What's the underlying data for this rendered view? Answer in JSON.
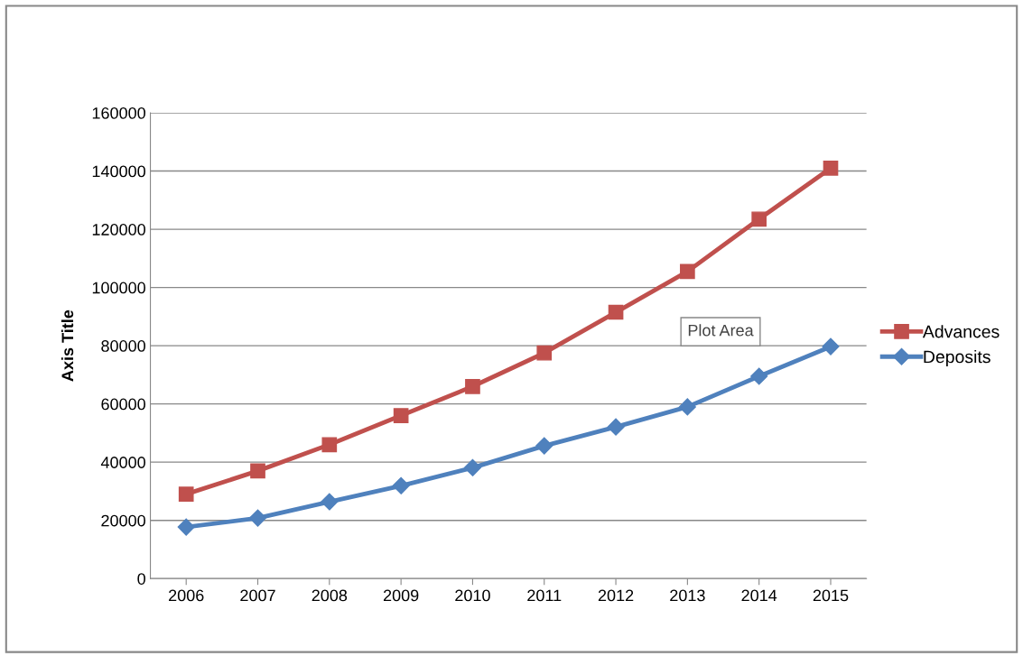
{
  "chart_data": {
    "type": "line",
    "ylabel": "Axis Title",
    "categories": [
      "2006",
      "2007",
      "2008",
      "2009",
      "2010",
      "2011",
      "2012",
      "2013",
      "2014",
      "2015"
    ],
    "series": [
      {
        "name": "Advances",
        "color": "#c0504d",
        "marker": "square",
        "values": [
          29000,
          37000,
          46000,
          56000,
          66000,
          77500,
          91500,
          105500,
          123500,
          141000
        ]
      },
      {
        "name": "Deposits",
        "color": "#4f81bd",
        "marker": "diamond",
        "values": [
          17700,
          20800,
          26400,
          31900,
          38100,
          45600,
          52100,
          59000,
          69500,
          79700
        ]
      }
    ],
    "ylim": [
      0,
      160000
    ],
    "yticks": [
      0,
      20000,
      40000,
      60000,
      80000,
      100000,
      120000,
      140000,
      160000
    ],
    "grid": "y",
    "legend": "right",
    "line_style": "solid",
    "annotations": [
      "Plot Area"
    ]
  }
}
